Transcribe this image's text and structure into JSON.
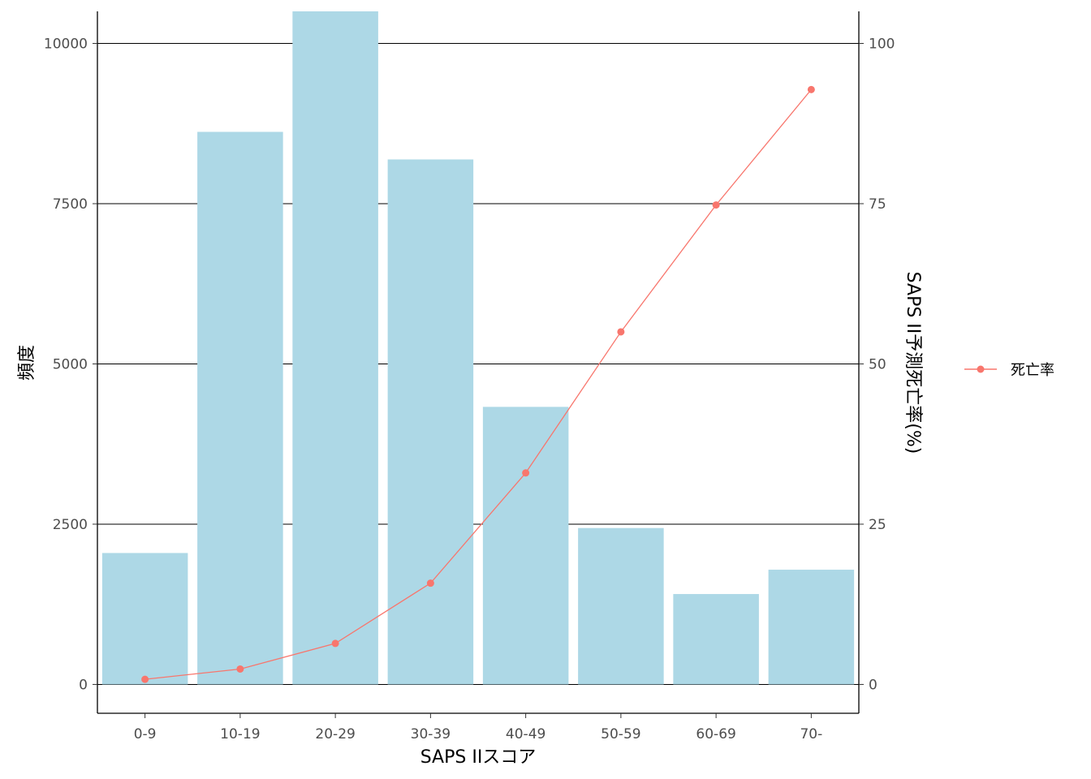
{
  "chart_data": {
    "type": "bar",
    "categories": [
      "0-9",
      "10-19",
      "20-29",
      "30-39",
      "40-49",
      "50-59",
      "60-69",
      "70-"
    ],
    "xlabel": "SAPS IIスコア",
    "ylabel": "頻度",
    "y2label": "SAPS II予測死亡率(%)",
    "ylim": [
      -450,
      10500
    ],
    "yticks": [
      0,
      2500,
      5000,
      7500,
      10000
    ],
    "y2lim": [
      -4.5,
      105
    ],
    "y2ticks": [
      0,
      25,
      50,
      75,
      100
    ],
    "grid": "horizontal-major",
    "legend_position": "right",
    "series": [
      {
        "type": "bar",
        "values": [
          2050,
          8620,
          10500,
          8190,
          4330,
          2440,
          1410,
          1790
        ],
        "color": "#ADD8E6"
      },
      {
        "type": "line",
        "name": "死亡率",
        "axis": "right",
        "values": [
          0.8,
          2.4,
          6.4,
          15.8,
          33.0,
          55.0,
          74.8,
          92.8
        ],
        "color": "#F8766D"
      }
    ]
  }
}
